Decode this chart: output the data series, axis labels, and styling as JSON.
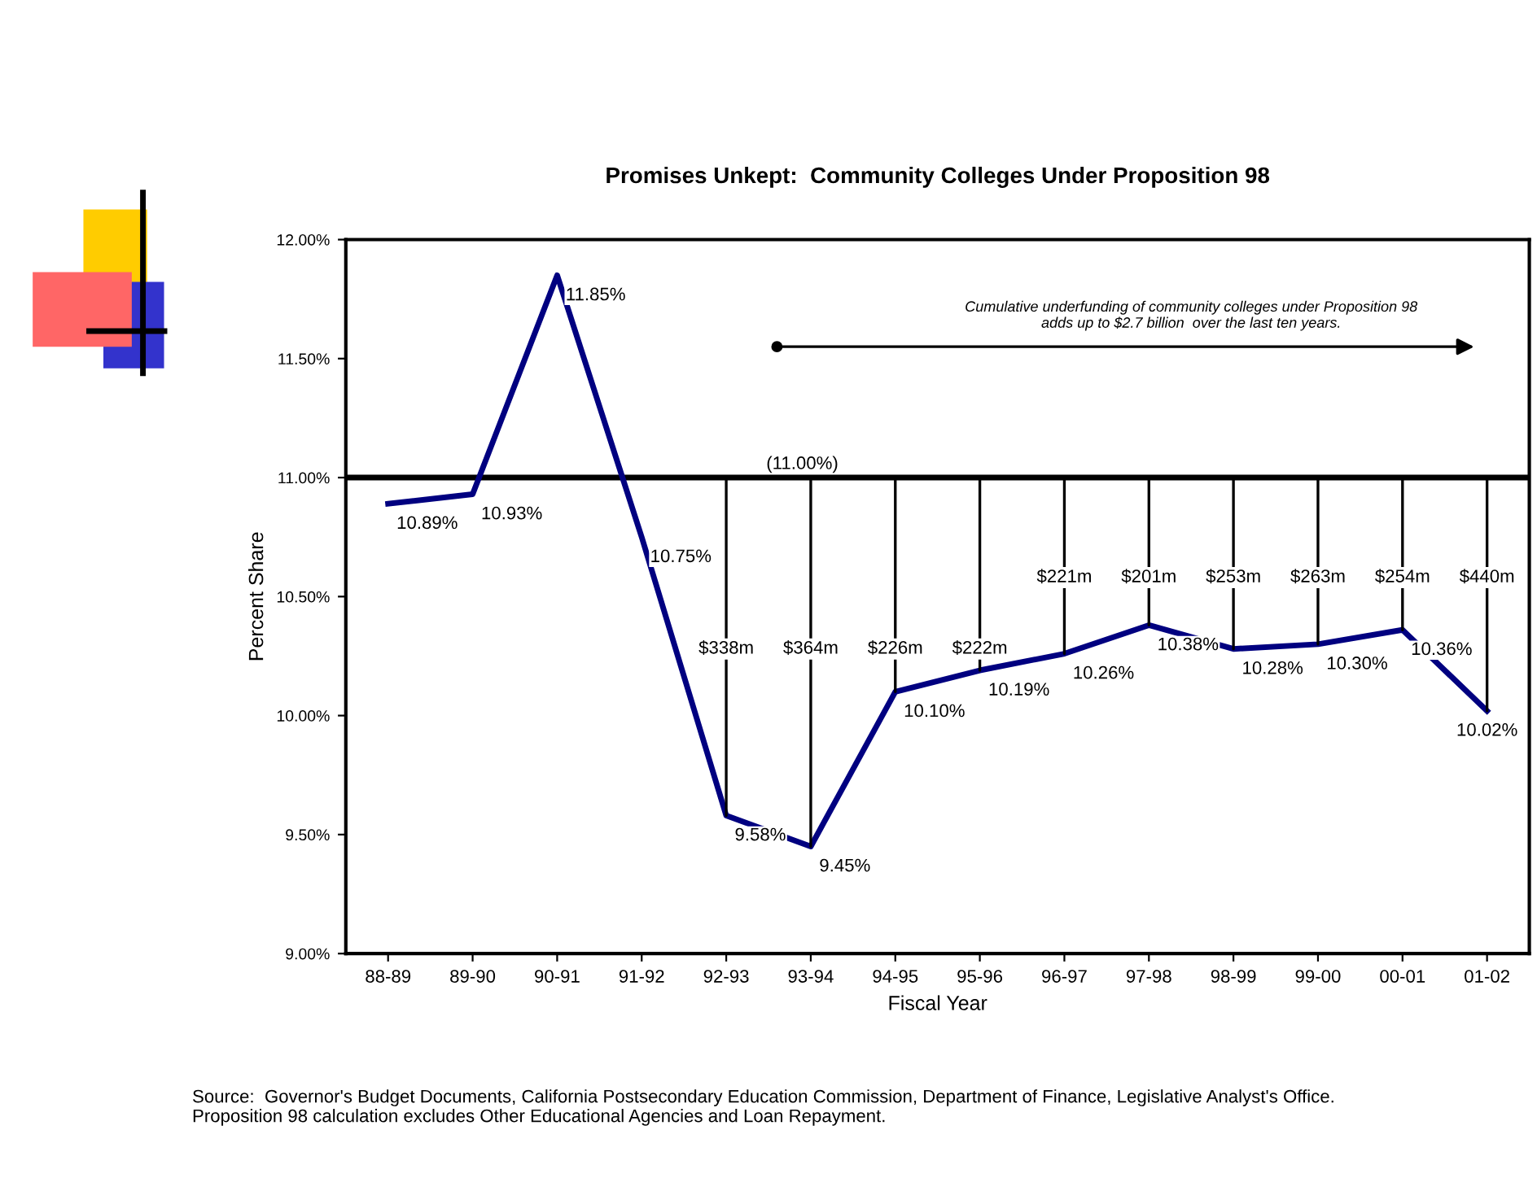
{
  "chart_data": {
    "type": "line",
    "title": "Promises Unkept:  Community Colleges Under Proposition 98",
    "xlabel": "Fiscal Year",
    "ylabel": "Percent Share",
    "categories": [
      "88-89",
      "89-90",
      "90-91",
      "91-92",
      "92-93",
      "93-94",
      "94-95",
      "95-96",
      "96-97",
      "97-98",
      "98-99",
      "99-00",
      "00-01",
      "01-02"
    ],
    "series": [
      {
        "color": "#000080",
        "values": [
          10.89,
          10.93,
          11.85,
          10.75,
          9.58,
          9.45,
          10.1,
          10.19,
          10.26,
          10.38,
          10.28,
          10.3,
          10.36,
          10.02
        ],
        "value_labels": [
          "10.89%",
          "10.93%",
          "11.85%",
          "10.75%",
          "9.58%",
          "9.45%",
          "10.10%",
          "10.19%",
          "10.26%",
          "10.38%",
          "10.28%",
          "10.30%",
          "10.36%",
          "10.02%"
        ]
      }
    ],
    "ylim": [
      9,
      12
    ],
    "yticks": [
      {
        "value": 9,
        "label": "9.00%"
      },
      {
        "value": 9.5,
        "label": "9.50%"
      },
      {
        "value": 10,
        "label": "10.00%"
      },
      {
        "value": 10.5,
        "label": "10.50%"
      },
      {
        "value": 11,
        "label": "11.00%"
      },
      {
        "value": 11.5,
        "label": "11.50%"
      },
      {
        "value": 12,
        "label": "12.00%"
      }
    ],
    "ref_lines": [
      {
        "axis": "y",
        "value": 11,
        "label": "(11.00%)",
        "color": "#000000"
      }
    ],
    "annotations": [
      {
        "text": "$338m",
        "x": "92-93",
        "y": 9.58
      },
      {
        "text": "$364m",
        "x": "93-94",
        "y": 9.45
      },
      {
        "text": "$226m",
        "x": "94-95",
        "y": 10.1
      },
      {
        "text": "$222m",
        "x": "95-96",
        "y": 10.19
      },
      {
        "text": "$221m",
        "x": "96-97",
        "y": 10.26
      },
      {
        "text": "$201m",
        "x": "97-98",
        "y": 10.38
      },
      {
        "text": "$253m",
        "x": "98-99",
        "y": 10.28
      },
      {
        "text": "$263m",
        "x": "99-00",
        "y": 10.3
      },
      {
        "text": "$254m",
        "x": "00-01",
        "y": 10.36
      },
      {
        "text": "$440m",
        "x": "01-02",
        "y": 10.02
      },
      "Cumulative underfunding of community colleges under Proposition 98\nadds up to $2.7 billion  over the last ten years.",
      "Source:  Governor's Budget Documents, California Postsecondary Education Commission, Department of Finance, Legislative Analyst's Office.\nProposition 98 calculation excludes Other Educational Agencies and Loan Repayment."
    ],
    "grid": false,
    "legend": false,
    "line_style": "solid"
  }
}
